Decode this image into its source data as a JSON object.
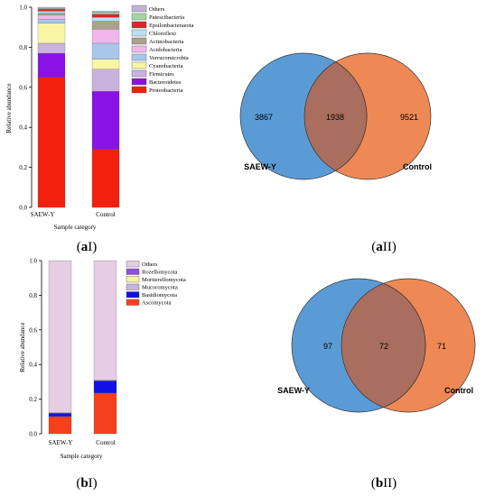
{
  "figure": {
    "panels": [
      {
        "label_main": "a",
        "label_suffix": "I"
      },
      {
        "label_main": "a",
        "label_suffix": "II"
      },
      {
        "label_main": "b",
        "label_suffix": "I"
      },
      {
        "label_main": "b",
        "label_suffix": "II"
      }
    ]
  },
  "chart_data": [
    {
      "type": "bar",
      "stacked": true,
      "xlabel": "Sample category",
      "ylabel": "Relative abundance",
      "ylim": [
        0,
        1.0
      ],
      "yticks": [
        "0.0",
        "0.2",
        "0.4",
        "0.6",
        "0.8",
        "1.0"
      ],
      "legend_position": "top-right",
      "categories": [
        "SAEW-Y",
        "Control"
      ],
      "series": [
        {
          "name": "Proteobacteria",
          "color": "#f2200c",
          "values": [
            0.65,
            0.29
          ]
        },
        {
          "name": "Bacteroidetes",
          "color": "#8b12e6",
          "values": [
            0.12,
            0.29
          ]
        },
        {
          "name": "Firmicutes",
          "color": "#c9b2dd",
          "values": [
            0.05,
            0.11
          ]
        },
        {
          "name": "Cyanobacteria",
          "color": "#f8f6a4",
          "values": [
            0.1,
            0.05
          ]
        },
        {
          "name": "Verrucomicrobia",
          "color": "#a9c6ec",
          "values": [
            0.02,
            0.08
          ]
        },
        {
          "name": "Acidobacteria",
          "color": "#f2b6ec",
          "values": [
            0.02,
            0.07
          ]
        },
        {
          "name": "Actinobacteria",
          "color": "#aaa38b",
          "values": [
            0.01,
            0.04
          ]
        },
        {
          "name": "Chloroflexi",
          "color": "#b7e3f2",
          "values": [
            0.01,
            0.02
          ]
        },
        {
          "name": "Epsilonbacteraeota",
          "color": "#e0242a",
          "values": [
            0.01,
            0.015
          ]
        },
        {
          "name": "Patescibacteria",
          "color": "#9fd9a1",
          "values": [
            0.005,
            0.01
          ]
        },
        {
          "name": "Others",
          "color": "#c3b2d6",
          "values": [
            0.005,
            0.005
          ]
        }
      ]
    },
    {
      "type": "venn",
      "sets": [
        {
          "name": "SAEW-Y",
          "color": "#5b9bd5",
          "only": 3867
        },
        {
          "name": "Control",
          "color": "#ee8955",
          "only": 9521
        }
      ],
      "intersection": 1938
    },
    {
      "type": "bar",
      "stacked": true,
      "xlabel": "Sample category",
      "ylabel": "Relative abundance",
      "ylim": [
        0,
        1.0
      ],
      "yticks": [
        "0.0",
        "0.2",
        "0.4",
        "0.6",
        "0.8",
        "1.0"
      ],
      "legend_position": "top-right",
      "categories": [
        "SAEW-Y",
        "Control"
      ],
      "series": [
        {
          "name": "Ascomycota",
          "color": "#f5401d",
          "values": [
            0.1,
            0.235
          ]
        },
        {
          "name": "Basidiomycota",
          "color": "#1111e6",
          "values": [
            0.018,
            0.07
          ]
        },
        {
          "name": "Mucoromycota",
          "color": "#c4b6e0",
          "values": [
            0.001,
            0.002
          ]
        },
        {
          "name": "Mortierellomycota",
          "color": "#f9f1a8",
          "values": [
            0.001,
            0.001
          ]
        },
        {
          "name": "Rozellomycota",
          "color": "#8e4fdb",
          "values": [
            0.001,
            0.001
          ]
        },
        {
          "name": "Others",
          "color": "#e6cde3",
          "values": [
            0.879,
            0.691
          ]
        }
      ]
    },
    {
      "type": "venn",
      "sets": [
        {
          "name": "SAEW-Y",
          "color": "#5b9bd5",
          "only": 97
        },
        {
          "name": "Control",
          "color": "#ee8955",
          "only": 71
        }
      ],
      "intersection": 72
    }
  ]
}
